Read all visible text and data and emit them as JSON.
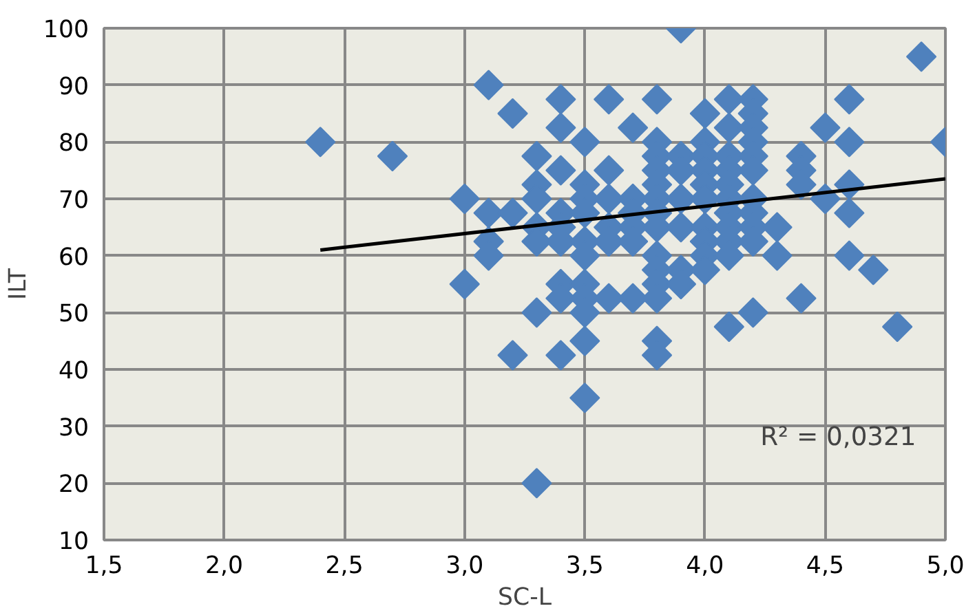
{
  "chart_data": {
    "type": "scatter",
    "xlabel": "SC-L",
    "ylabel": "ILT",
    "grid": true,
    "xlim": [
      1.5,
      5.0
    ],
    "ylim": [
      10,
      100
    ],
    "xticks": [
      {
        "value": 1.5,
        "label": "1,5"
      },
      {
        "value": 2.0,
        "label": "2,0"
      },
      {
        "value": 2.5,
        "label": "2,5"
      },
      {
        "value": 3.0,
        "label": "3,0"
      },
      {
        "value": 3.5,
        "label": "3,5"
      },
      {
        "value": 4.0,
        "label": "4,0"
      },
      {
        "value": 4.5,
        "label": "4,5"
      },
      {
        "value": 5.0,
        "label": "5,0"
      }
    ],
    "yticks": [
      10,
      20,
      30,
      40,
      50,
      60,
      70,
      80,
      90,
      100
    ],
    "annotations": [
      "R² = 0,0321"
    ],
    "series": [
      {
        "marker": "diamond",
        "color": "#4f81bd",
        "x": [
          2.4,
          2.7,
          3.0,
          3.0,
          3.1,
          3.1,
          3.1,
          3.1,
          3.2,
          3.2,
          3.2,
          3.3,
          3.3,
          3.3,
          3.3,
          3.3,
          3.3,
          3.3,
          3.4,
          3.4,
          3.4,
          3.4,
          3.4,
          3.4,
          3.4,
          3.4,
          3.4,
          3.5,
          3.5,
          3.5,
          3.5,
          3.5,
          3.5,
          3.5,
          3.5,
          3.5,
          3.5,
          3.5,
          3.6,
          3.6,
          3.6,
          3.6,
          3.6,
          3.6,
          3.7,
          3.7,
          3.7,
          3.7,
          3.7,
          3.7,
          3.8,
          3.8,
          3.8,
          3.8,
          3.8,
          3.8,
          3.8,
          3.8,
          3.8,
          3.8,
          3.8,
          3.8,
          3.8,
          3.8,
          3.9,
          3.9,
          3.9,
          3.9,
          3.9,
          3.9,
          3.9,
          4.0,
          4.0,
          4.0,
          4.0,
          4.0,
          4.0,
          4.0,
          4.0,
          4.0,
          4.0,
          4.1,
          4.1,
          4.1,
          4.1,
          4.1,
          4.1,
          4.1,
          4.1,
          4.1,
          4.1,
          4.1,
          4.2,
          4.2,
          4.2,
          4.2,
          4.2,
          4.2,
          4.2,
          4.2,
          4.2,
          4.2,
          4.2,
          4.3,
          4.3,
          4.4,
          4.4,
          4.4,
          4.4,
          4.5,
          4.5,
          4.6,
          4.6,
          4.6,
          4.6,
          4.6,
          4.7,
          4.8,
          4.9,
          5.0
        ],
        "values": [
          80,
          77.5,
          70,
          55,
          90,
          67.5,
          62.5,
          60,
          85,
          67.5,
          42.5,
          77.5,
          72.5,
          70,
          65,
          62.5,
          50,
          20,
          87.5,
          82.5,
          75,
          67.5,
          65,
          62.5,
          55,
          52.5,
          42.5,
          80,
          72.5,
          70,
          67.5,
          62.5,
          60,
          55,
          52.5,
          50,
          45,
          35,
          87.5,
          75,
          70,
          65,
          62.5,
          52.5,
          82.5,
          70,
          67.5,
          65,
          62.5,
          52.5,
          87.5,
          80,
          77.5,
          75,
          72.5,
          70,
          67.5,
          65,
          60,
          57.5,
          55,
          52.5,
          45,
          42.5,
          100,
          77.5,
          75,
          70,
          65,
          57.5,
          55,
          85,
          80,
          77.5,
          75,
          72.5,
          70,
          65,
          62.5,
          60,
          57.5,
          87.5,
          82.5,
          77.5,
          75,
          72.5,
          70,
          67.5,
          65,
          62.5,
          60,
          47.5,
          87.5,
          85,
          82.5,
          80,
          77.5,
          75,
          70,
          67.5,
          65,
          62.5,
          50,
          65,
          60,
          77.5,
          75,
          72.5,
          52.5,
          82.5,
          70,
          87.5,
          80,
          72.5,
          67.5,
          60,
          57.5,
          47.5,
          95,
          80
        ]
      },
      {
        "type": "line",
        "marker": "none",
        "color": "#000000",
        "x": [
          2.4,
          5.0
        ],
        "values": [
          61,
          73.5
        ]
      }
    ]
  }
}
